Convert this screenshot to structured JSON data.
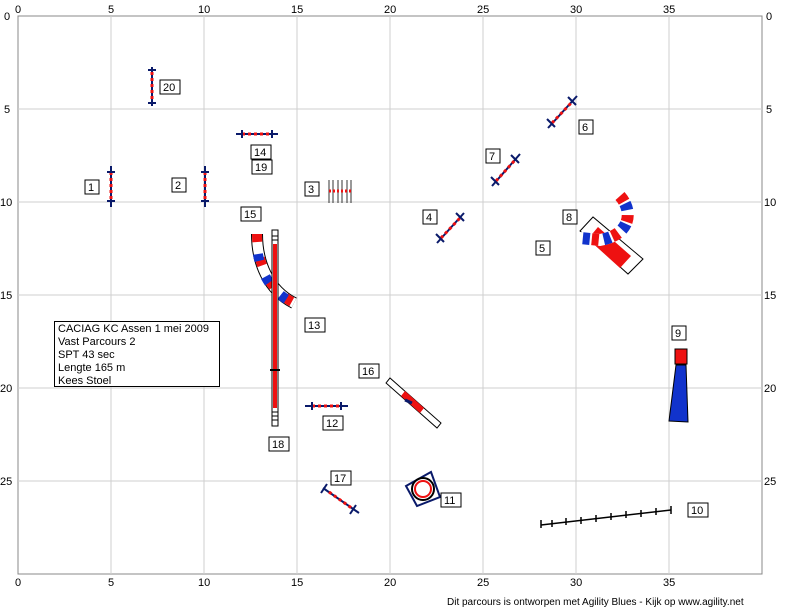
{
  "course_info": {
    "line1": "CACIAG KC Assen 1 mei 2009",
    "line2": "Vast Parcours 2",
    "line3": "SPT 43 sec",
    "line4": "Lengte 165 m",
    "line5": "Kees Stoel"
  },
  "footer": "Dit parcours is ontworpen met Agility Blues - Kijk op www.agility.net",
  "grid": {
    "x_ticks": [
      "0",
      "5",
      "10",
      "15",
      "20",
      "25",
      "30",
      "35"
    ],
    "y_ticks": [
      "0",
      "5",
      "10",
      "15",
      "20",
      "25"
    ]
  },
  "obstacle_numbers": [
    "1",
    "2",
    "3",
    "4",
    "5",
    "6",
    "7",
    "8",
    "9",
    "10",
    "11",
    "12",
    "13",
    "14",
    "15",
    "16",
    "17",
    "18",
    "19",
    "20"
  ],
  "colors": {
    "red": "#ee1111",
    "blue": "#1133cc",
    "navy": "#0a1a6a",
    "black": "#000000"
  }
}
